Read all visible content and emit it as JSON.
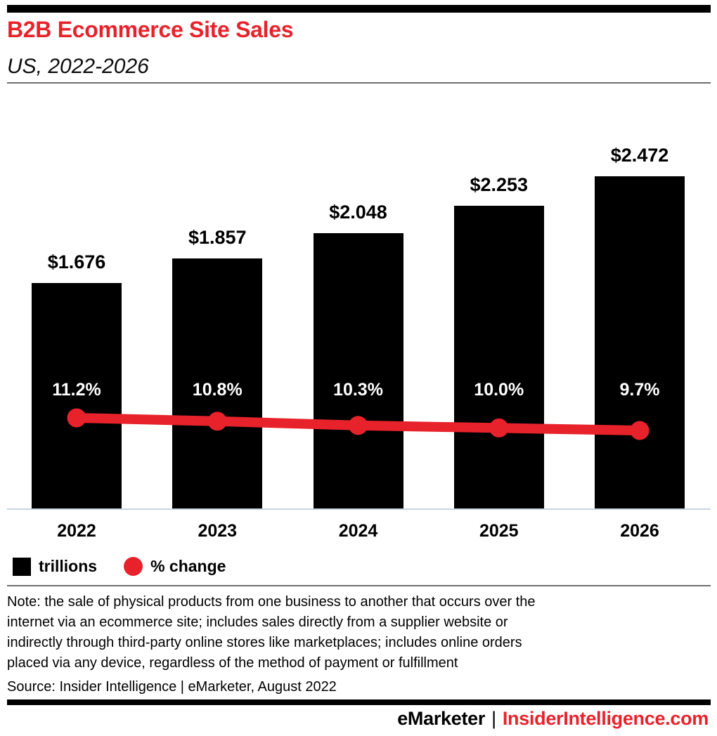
{
  "header": {
    "title": "B2B Ecommerce Site Sales",
    "subtitle": "US, 2022-2026"
  },
  "chart_data": {
    "type": "bar",
    "subtype": "bar-with-line-overlay",
    "categories": [
      "2022",
      "2023",
      "2024",
      "2025",
      "2026"
    ],
    "series": [
      {
        "name": "trillions",
        "type": "bar",
        "values": [
          1.676,
          1.857,
          2.048,
          2.253,
          2.472
        ],
        "labels": [
          "$1.676",
          "$1.857",
          "$2.048",
          "$2.253",
          "$2.472"
        ],
        "color": "#000000"
      },
      {
        "name": "% change",
        "type": "line",
        "values": [
          11.2,
          10.8,
          10.3,
          10.0,
          9.7
        ],
        "labels": [
          "11.2%",
          "10.8%",
          "10.3%",
          "10.0%",
          "9.7%"
        ],
        "color": "#e8222b"
      }
    ],
    "title": "B2B Ecommerce Site Sales",
    "xlabel": "",
    "ylabel": "",
    "grid": false,
    "legend_position": "bottom-left"
  },
  "legend": {
    "items": [
      {
        "label": "trillions",
        "swatch": "square",
        "color": "#000000"
      },
      {
        "label": "% change",
        "swatch": "circle",
        "color": "#e8222b"
      }
    ]
  },
  "footer": {
    "note_lines": [
      "Note: the sale of physical products from one business to another that occurs over the",
      "internet via an ecommerce site; includes sales directly from a supplier website or",
      "indirectly through third-party online stores like marketplaces; includes online orders",
      "placed via any device, regardless of the method of payment or fulfillment"
    ],
    "source": "Source: Insider Intelligence | eMarketer, August 2022",
    "brand_left": "eMarketer",
    "brand_separator": "|",
    "brand_right": "InsiderIntelligence.com"
  },
  "colors": {
    "accent_red": "#e8222b",
    "bar_black": "#000000",
    "axis_line": "#c9d2e3",
    "divider_gray": "#6e6e6e"
  }
}
